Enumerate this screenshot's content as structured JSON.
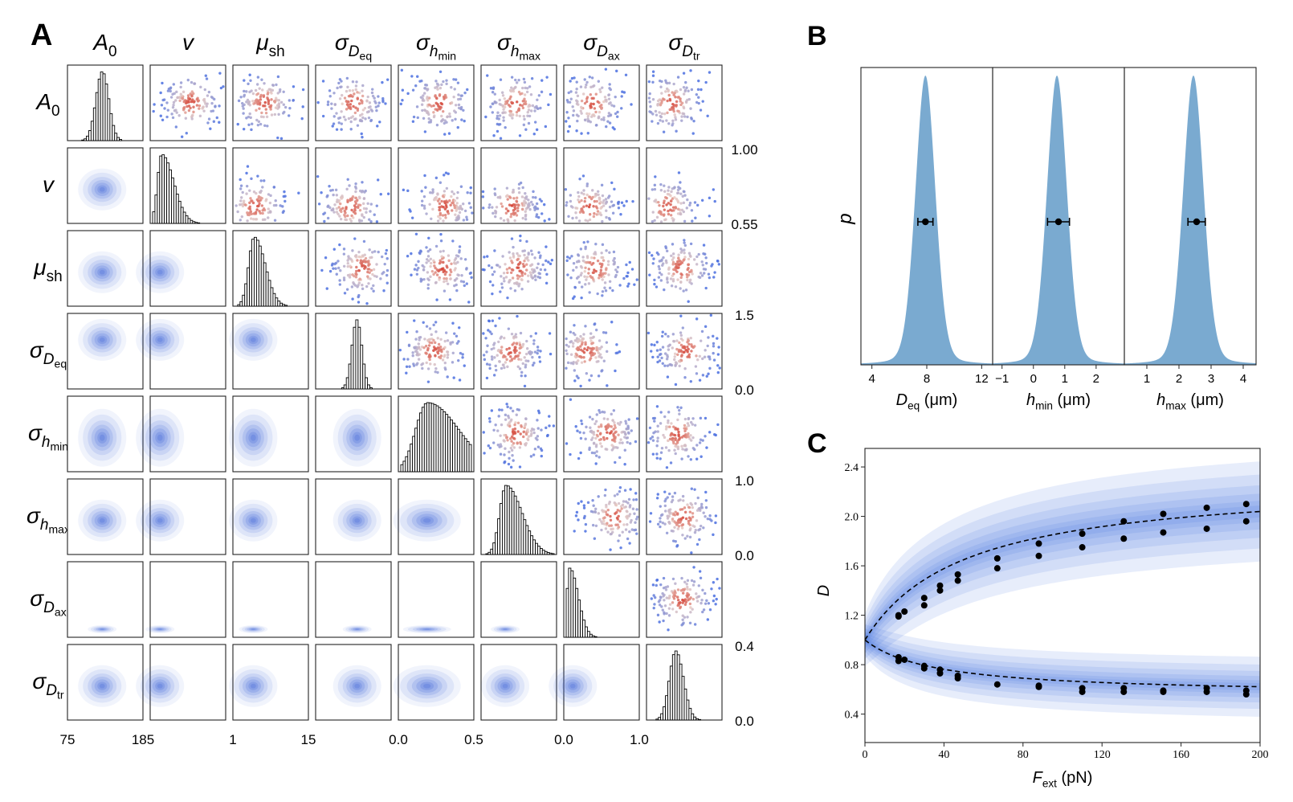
{
  "panel_labels": {
    "a": "A",
    "b": "B",
    "c": "C"
  },
  "chart_data": [
    {
      "type": "corner",
      "panel": "A",
      "parameters": [
        {
          "base": "A",
          "sub": "0"
        },
        {
          "base": "v",
          "sub": ""
        },
        {
          "base": "μ",
          "sub": "sh"
        },
        {
          "base": "σ",
          "sub": "D",
          "subsub": "eq"
        },
        {
          "base": "σ",
          "sub": "h",
          "subsub": "min"
        },
        {
          "base": "σ",
          "sub": "h",
          "subsub": "max"
        },
        {
          "base": "σ",
          "sub": "D",
          "subsub": "ax"
        },
        {
          "base": "σ",
          "sub": "D",
          "subsub": "tr"
        }
      ],
      "histogram_centers": [
        0.46,
        0.13,
        0.27,
        0.55,
        0.38,
        0.32,
        0.05,
        0.38
      ],
      "histogram_widths": [
        0.09,
        0.06,
        0.08,
        0.07,
        0.17,
        0.09,
        0.04,
        0.09
      ],
      "histogram_skew": [
        0.0,
        1.8,
        0.9,
        0.0,
        1.6,
        1.5,
        2.0,
        0.2
      ],
      "x_tick_labels": [
        [
          "75",
          "185"
        ],
        [
          "",
          ""
        ],
        [
          "1",
          "15"
        ],
        [
          "",
          ""
        ],
        [
          "0.0",
          "0.5"
        ],
        [
          "",
          ""
        ],
        [
          "0.0",
          "1.0"
        ],
        [
          "",
          ""
        ]
      ],
      "right_axis_labels": [
        {
          "top": "",
          "bottom": ""
        },
        {
          "top": "1.00",
          "bottom": "0.55"
        },
        {
          "top": "",
          "bottom": ""
        },
        {
          "top": "1.5",
          "bottom": "0.0"
        },
        {
          "top": "",
          "bottom": ""
        },
        {
          "top": "1.0",
          "bottom": "0.0"
        },
        {
          "top": "",
          "bottom": ""
        },
        {
          "top": "0.4",
          "bottom": "0.0"
        }
      ],
      "lower_triangle": "kde-contours",
      "upper_triangle": "scatter-colored",
      "colors": {
        "kde": "#3f63d8",
        "scatter_high": "#d33a2c",
        "scatter_mid": "#e8c9c1",
        "scatter_low": "#4a6fe0",
        "hist_edge": "#000000"
      }
    },
    {
      "type": "density",
      "panel": "B",
      "ylabel": "p",
      "subplots": [
        {
          "xlabel_base": "D",
          "xlabel_sub": "eq",
          "xlabel_unit": " (μm)",
          "xlim": [
            3.2,
            12.8
          ],
          "xticks": [
            4,
            8,
            12
          ],
          "peak": 7.9,
          "sigma": 0.75,
          "mean": 7.9,
          "err": 0.55
        },
        {
          "xlabel_base": "h",
          "xlabel_sub": "min",
          "xlabel_unit": " (μm)",
          "xlim": [
            -1.3,
            2.9
          ],
          "xticks": [
            -1,
            0,
            1,
            2
          ],
          "peak": 0.75,
          "sigma": 0.33,
          "mean": 0.8,
          "err": 0.35
        },
        {
          "xlabel_base": "h",
          "xlabel_sub": "max",
          "xlabel_unit": " (μm)",
          "xlim": [
            0.3,
            4.4
          ],
          "xticks": [
            1,
            2,
            3,
            4
          ],
          "peak": 2.45,
          "sigma": 0.33,
          "mean": 2.55,
          "err": 0.27
        }
      ],
      "color": "#7aaad0"
    },
    {
      "type": "scatter-with-bands",
      "panel": "C",
      "xlabel_base": "F",
      "xlabel_sub": "ext",
      "xlabel_unit": " (pN)",
      "ylabel": "D",
      "xlim": [
        0,
        200
      ],
      "ylim": [
        0.17,
        2.55
      ],
      "xticks": [
        0,
        40,
        80,
        120,
        160,
        200
      ],
      "yticks": [
        0.4,
        0.8,
        1.2,
        1.6,
        2.0,
        2.4
      ],
      "ytick_labels": [
        "0.4",
        "0.8",
        "1.2",
        "1.6",
        "2.0",
        "2.4"
      ],
      "upper_series": {
        "x": [
          17,
          17,
          20,
          30,
          30,
          38,
          38,
          47,
          47,
          67,
          67,
          88,
          88,
          110,
          110,
          131,
          131,
          151,
          151,
          173,
          173,
          193,
          193
        ],
        "y": [
          1.19,
          1.2,
          1.23,
          1.28,
          1.34,
          1.4,
          1.44,
          1.48,
          1.53,
          1.58,
          1.66,
          1.68,
          1.78,
          1.75,
          1.86,
          1.82,
          1.96,
          1.87,
          2.02,
          1.9,
          2.07,
          1.96,
          2.1
        ],
        "fit_A": 1.78,
        "fit_K": 50
      },
      "lower_series": {
        "x": [
          17,
          17,
          20,
          30,
          30,
          38,
          38,
          47,
          47,
          67,
          88,
          88,
          110,
          110,
          131,
          131,
          151,
          151,
          173,
          173,
          193,
          193
        ],
        "y": [
          0.83,
          0.86,
          0.84,
          0.77,
          0.79,
          0.73,
          0.76,
          0.69,
          0.71,
          0.64,
          0.62,
          0.63,
          0.58,
          0.61,
          0.58,
          0.61,
          0.58,
          0.59,
          0.58,
          0.61,
          0.56,
          0.59
        ],
        "fit_A": 0.57,
        "fit_K": 35
      },
      "band_color": "#3a6be0",
      "fit_style": "dashed"
    }
  ]
}
